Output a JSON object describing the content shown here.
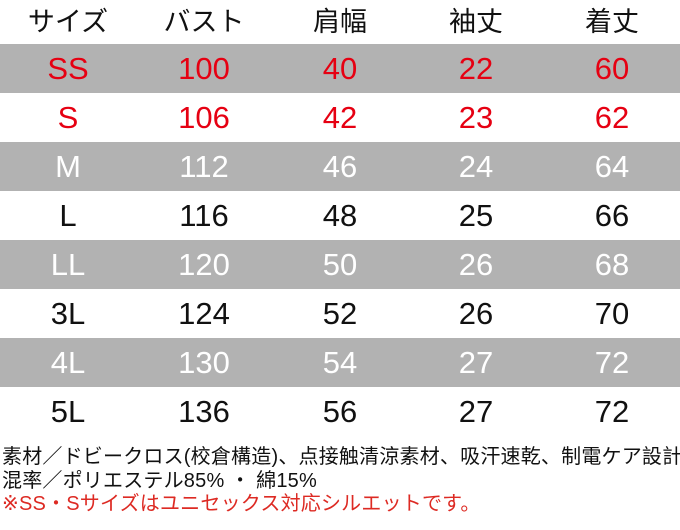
{
  "colors": {
    "row_highlight": "#b2b2b2",
    "accent_red": "#e60012",
    "note_red": "#dd2a23",
    "text_black": "#111111",
    "text_white": "#ffffff"
  },
  "size_chart": {
    "columns": [
      {
        "key": "size",
        "label": "サイズ"
      },
      {
        "key": "bust",
        "label": "バスト"
      },
      {
        "key": "shoulder",
        "label": "肩幅"
      },
      {
        "key": "sleeve",
        "label": "袖丈"
      },
      {
        "key": "length",
        "label": "着丈"
      }
    ],
    "rows": [
      {
        "size": "SS",
        "bust": "100",
        "shoulder": "40",
        "sleeve": "22",
        "length": "60",
        "shaded": true,
        "red": true
      },
      {
        "size": "S",
        "bust": "106",
        "shoulder": "42",
        "sleeve": "23",
        "length": "62",
        "shaded": false,
        "red": true
      },
      {
        "size": "M",
        "bust": "112",
        "shoulder": "46",
        "sleeve": "24",
        "length": "64",
        "shaded": true,
        "red": false
      },
      {
        "size": "L",
        "bust": "116",
        "shoulder": "48",
        "sleeve": "25",
        "length": "66",
        "shaded": false,
        "red": false
      },
      {
        "size": "LL",
        "bust": "120",
        "shoulder": "50",
        "sleeve": "26",
        "length": "68",
        "shaded": true,
        "red": false
      },
      {
        "size": "3L",
        "bust": "124",
        "shoulder": "52",
        "sleeve": "26",
        "length": "70",
        "shaded": false,
        "red": false
      },
      {
        "size": "4L",
        "bust": "130",
        "shoulder": "54",
        "sleeve": "27",
        "length": "72",
        "shaded": true,
        "red": false
      },
      {
        "size": "5L",
        "bust": "136",
        "shoulder": "56",
        "sleeve": "27",
        "length": "72",
        "shaded": false,
        "red": false
      }
    ]
  },
  "notes": {
    "material": "素材／ドビークロス(校倉構造)、点接触清涼素材、吸汗速乾、制電ケア設計",
    "composition": "混率／ポリエステル85% ・ 綿15%",
    "caution": "※SS・Sサイズはユニセックス対応シルエットです。"
  }
}
